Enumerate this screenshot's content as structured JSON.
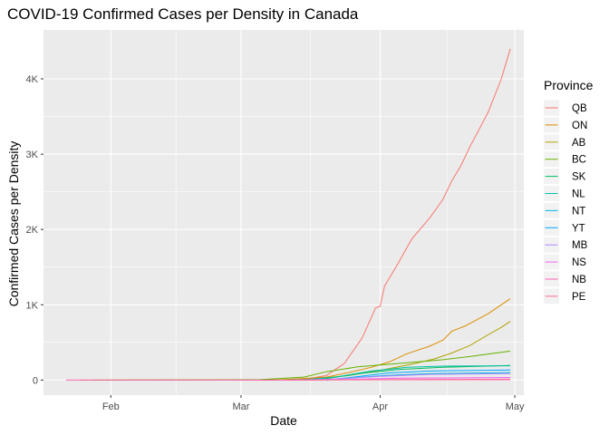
{
  "chart_data": {
    "type": "line",
    "title": "COVID-19 Confirmed Cases per Density in Canada",
    "xlabel": "Date",
    "ylabel": "Confirmed Cases per Density",
    "x_ticks": [
      {
        "label": "Feb",
        "day": 31
      },
      {
        "label": "Mar",
        "day": 60
      },
      {
        "label": "Apr",
        "day": 91
      },
      {
        "label": "May",
        "day": 121
      }
    ],
    "y_ticks": [
      {
        "label": "0",
        "value": 0
      },
      {
        "label": "1K",
        "value": 1000
      },
      {
        "label": "2K",
        "value": 2000
      },
      {
        "label": "3K",
        "value": 3000
      },
      {
        "label": "4K",
        "value": 4000
      }
    ],
    "xlim": [
      "2020-01-17",
      "2020-05-03"
    ],
    "ylim": [
      -200,
      4650
    ],
    "legend": {
      "title": "Province",
      "position": "right"
    },
    "series": [
      {
        "name": "QB",
        "color": "#F8766D",
        "points": [
          [
            "2020-02-28",
            0
          ],
          [
            "2020-03-10",
            2
          ],
          [
            "2020-03-15",
            10
          ],
          [
            "2020-03-20",
            60
          ],
          [
            "2020-03-24",
            220
          ],
          [
            "2020-03-28",
            560
          ],
          [
            "2020-03-31",
            960
          ],
          [
            "2020-04-01",
            980
          ],
          [
            "2020-04-02",
            1250
          ],
          [
            "2020-04-05",
            1550
          ],
          [
            "2020-04-08",
            1870
          ],
          [
            "2020-04-12",
            2150
          ],
          [
            "2020-04-15",
            2400
          ],
          [
            "2020-04-17",
            2650
          ],
          [
            "2020-04-19",
            2850
          ],
          [
            "2020-04-21",
            3100
          ],
          [
            "2020-04-25",
            3550
          ],
          [
            "2020-04-28",
            4000
          ],
          [
            "2020-04-30",
            4400
          ]
        ]
      },
      {
        "name": "ON",
        "color": "#DB8E00",
        "points": [
          [
            "2020-01-25",
            0
          ],
          [
            "2020-03-10",
            5
          ],
          [
            "2020-03-20",
            40
          ],
          [
            "2020-03-25",
            100
          ],
          [
            "2020-03-30",
            170
          ],
          [
            "2020-04-03",
            240
          ],
          [
            "2020-04-07",
            350
          ],
          [
            "2020-04-12",
            450
          ],
          [
            "2020-04-15",
            530
          ],
          [
            "2020-04-17",
            650
          ],
          [
            "2020-04-20",
            720
          ],
          [
            "2020-04-25",
            880
          ],
          [
            "2020-04-30",
            1080
          ]
        ]
      },
      {
        "name": "AB",
        "color": "#AEA200",
        "points": [
          [
            "2020-03-05",
            0
          ],
          [
            "2020-03-15",
            5
          ],
          [
            "2020-03-25",
            60
          ],
          [
            "2020-04-01",
            130
          ],
          [
            "2020-04-08",
            210
          ],
          [
            "2020-04-13",
            280
          ],
          [
            "2020-04-17",
            360
          ],
          [
            "2020-04-21",
            460
          ],
          [
            "2020-04-25",
            600
          ],
          [
            "2020-04-28",
            700
          ],
          [
            "2020-04-30",
            780
          ]
        ]
      },
      {
        "name": "BC",
        "color": "#64B200",
        "points": [
          [
            "2020-01-28",
            0
          ],
          [
            "2020-03-05",
            5
          ],
          [
            "2020-03-15",
            40
          ],
          [
            "2020-03-20",
            110
          ],
          [
            "2020-03-27",
            175
          ],
          [
            "2020-04-05",
            220
          ],
          [
            "2020-04-15",
            270
          ],
          [
            "2020-04-22",
            320
          ],
          [
            "2020-04-30",
            385
          ]
        ]
      },
      {
        "name": "SK",
        "color": "#00BD5C",
        "points": [
          [
            "2020-03-12",
            0
          ],
          [
            "2020-03-20",
            20
          ],
          [
            "2020-03-28",
            90
          ],
          [
            "2020-04-05",
            140
          ],
          [
            "2020-04-15",
            170
          ],
          [
            "2020-04-30",
            195
          ]
        ]
      },
      {
        "name": "NL",
        "color": "#00C1A7",
        "points": [
          [
            "2020-03-14",
            0
          ],
          [
            "2020-03-22",
            40
          ],
          [
            "2020-03-30",
            120
          ],
          [
            "2020-04-07",
            170
          ],
          [
            "2020-04-15",
            185
          ],
          [
            "2020-04-30",
            190
          ]
        ]
      },
      {
        "name": "NT",
        "color": "#00BADE",
        "points": [
          [
            "2020-03-20",
            0
          ],
          [
            "2020-03-26",
            30
          ],
          [
            "2020-04-02",
            60
          ],
          [
            "2020-04-12",
            85
          ],
          [
            "2020-04-30",
            100
          ]
        ]
      },
      {
        "name": "YT",
        "color": "#00A6FF",
        "points": [
          [
            "2020-03-20",
            0
          ],
          [
            "2020-03-26",
            40
          ],
          [
            "2020-04-03",
            95
          ],
          [
            "2020-04-12",
            120
          ],
          [
            "2020-04-30",
            135
          ]
        ]
      },
      {
        "name": "MB",
        "color": "#B385FF",
        "points": [
          [
            "2020-03-12",
            0
          ],
          [
            "2020-03-22",
            15
          ],
          [
            "2020-04-01",
            50
          ],
          [
            "2020-04-12",
            75
          ],
          [
            "2020-04-30",
            85
          ]
        ]
      },
      {
        "name": "NS",
        "color": "#EF67EB",
        "points": [
          [
            "2020-03-15",
            0
          ],
          [
            "2020-03-25",
            10
          ],
          [
            "2020-04-05",
            25
          ],
          [
            "2020-04-30",
            35
          ]
        ]
      },
      {
        "name": "NB",
        "color": "#FF63B6",
        "points": [
          [
            "2020-01-22",
            0
          ],
          [
            "2020-03-12",
            0
          ],
          [
            "2020-03-25",
            5
          ],
          [
            "2020-04-10",
            10
          ],
          [
            "2020-04-30",
            12
          ]
        ]
      },
      {
        "name": "PE",
        "color": "#FF6C91",
        "points": [
          [
            "2020-03-14",
            0
          ],
          [
            "2020-03-25",
            3
          ],
          [
            "2020-04-30",
            5
          ]
        ]
      }
    ]
  }
}
